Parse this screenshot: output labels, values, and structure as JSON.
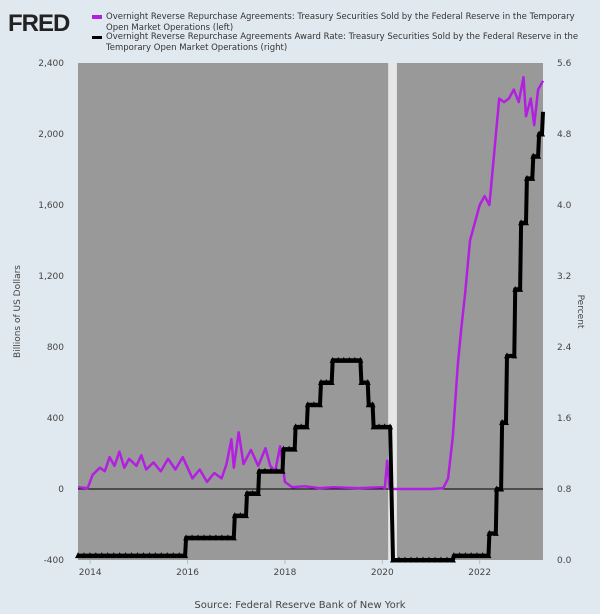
{
  "header": {
    "logo": "FRED"
  },
  "legend": [
    {
      "label": "Overnight Reverse Repurchase Agreements: Treasury Securities Sold by the Federal Reserve in the Temporary Open Market Operations (left)",
      "color": "#b31fe0"
    },
    {
      "label": "Overnight Reverse Repurchase Agreements Award Rate: Treasury Securities Sold by the Federal Reserve in the Temporary Open Market Operations (right)",
      "color": "#000000"
    }
  ],
  "source": "Source: Federal Reserve Bank of New York",
  "chart_data": {
    "type": "line",
    "xlim": [
      2013.75,
      2023.3
    ],
    "x_ticks": [
      "2014",
      "2016",
      "2018",
      "2020",
      "2022"
    ],
    "x_tick_values": [
      2014,
      2016,
      2018,
      2020,
      2022
    ],
    "ylabel_left": "Billions of US Dollars",
    "ylabel_right": "Percent",
    "ylim_left": [
      -400,
      2400
    ],
    "ylim_right": [
      0,
      5.6
    ],
    "y_ticks_left": [
      "2,400",
      "2,000",
      "1,600",
      "1,200",
      "800",
      "400",
      "0",
      "-400"
    ],
    "y_tick_values_left": [
      2400,
      2000,
      1600,
      1200,
      800,
      400,
      0,
      -400
    ],
    "y_ticks_right": [
      "5.6",
      "4.8",
      "4.0",
      "3.2",
      "2.4",
      "1.6",
      "0.8",
      "0.0"
    ],
    "y_tick_values_right": [
      5.6,
      4.8,
      4.0,
      3.2,
      2.4,
      1.6,
      0.8,
      0.0
    ],
    "recession": [
      2020.12,
      2020.3
    ],
    "series": [
      {
        "name": "Overnight RRP (left)",
        "axis": "left",
        "color": "#b31fe0",
        "points": [
          [
            2013.75,
            10
          ],
          [
            2013.95,
            5
          ],
          [
            2014.05,
            80
          ],
          [
            2014.2,
            120
          ],
          [
            2014.3,
            100
          ],
          [
            2014.4,
            180
          ],
          [
            2014.5,
            130
          ],
          [
            2014.6,
            210
          ],
          [
            2014.7,
            120
          ],
          [
            2014.8,
            170
          ],
          [
            2014.95,
            130
          ],
          [
            2015.05,
            190
          ],
          [
            2015.15,
            110
          ],
          [
            2015.3,
            150
          ],
          [
            2015.45,
            100
          ],
          [
            2015.6,
            170
          ],
          [
            2015.75,
            110
          ],
          [
            2015.9,
            180
          ],
          [
            2016.0,
            120
          ],
          [
            2016.1,
            60
          ],
          [
            2016.25,
            110
          ],
          [
            2016.4,
            40
          ],
          [
            2016.55,
            90
          ],
          [
            2016.7,
            60
          ],
          [
            2016.8,
            140
          ],
          [
            2016.9,
            280
          ],
          [
            2016.95,
            120
          ],
          [
            2017.05,
            320
          ],
          [
            2017.15,
            140
          ],
          [
            2017.3,
            220
          ],
          [
            2017.45,
            130
          ],
          [
            2017.6,
            230
          ],
          [
            2017.7,
            130
          ],
          [
            2017.8,
            100
          ],
          [
            2017.9,
            240
          ],
          [
            2018.0,
            40
          ],
          [
            2018.15,
            10
          ],
          [
            2018.4,
            15
          ],
          [
            2018.7,
            5
          ],
          [
            2019.0,
            10
          ],
          [
            2019.5,
            5
          ],
          [
            2020.0,
            10
          ],
          [
            2020.05,
            5
          ],
          [
            2020.1,
            160
          ],
          [
            2020.15,
            0
          ],
          [
            2020.5,
            0
          ],
          [
            2021.0,
            0
          ],
          [
            2021.25,
            5
          ],
          [
            2021.35,
            60
          ],
          [
            2021.45,
            300
          ],
          [
            2021.55,
            700
          ],
          [
            2021.62,
            900
          ],
          [
            2021.7,
            1100
          ],
          [
            2021.8,
            1400
          ],
          [
            2021.9,
            1500
          ],
          [
            2022.0,
            1600
          ],
          [
            2022.1,
            1650
          ],
          [
            2022.2,
            1600
          ],
          [
            2022.3,
            1900
          ],
          [
            2022.4,
            2200
          ],
          [
            2022.5,
            2180
          ],
          [
            2022.6,
            2200
          ],
          [
            2022.7,
            2250
          ],
          [
            2022.8,
            2180
          ],
          [
            2022.9,
            2320
          ],
          [
            2022.95,
            2100
          ],
          [
            2023.05,
            2200
          ],
          [
            2023.12,
            2050
          ],
          [
            2023.2,
            2250
          ],
          [
            2023.3,
            2300
          ]
        ]
      },
      {
        "name": "Award Rate (right)",
        "axis": "right",
        "color": "#000000",
        "points": [
          [
            2013.75,
            0.05
          ],
          [
            2015.95,
            0.05
          ],
          [
            2015.97,
            0.25
          ],
          [
            2016.95,
            0.25
          ],
          [
            2016.97,
            0.5
          ],
          [
            2017.2,
            0.5
          ],
          [
            2017.22,
            0.75
          ],
          [
            2017.45,
            0.75
          ],
          [
            2017.47,
            1.0
          ],
          [
            2017.95,
            1.0
          ],
          [
            2017.97,
            1.25
          ],
          [
            2018.2,
            1.25
          ],
          [
            2018.22,
            1.5
          ],
          [
            2018.45,
            1.5
          ],
          [
            2018.47,
            1.75
          ],
          [
            2018.72,
            1.75
          ],
          [
            2018.74,
            2.0
          ],
          [
            2018.96,
            2.0
          ],
          [
            2018.98,
            2.25
          ],
          [
            2019.55,
            2.25
          ],
          [
            2019.57,
            2.0
          ],
          [
            2019.7,
            2.0
          ],
          [
            2019.72,
            1.75
          ],
          [
            2019.8,
            1.75
          ],
          [
            2019.82,
            1.5
          ],
          [
            2020.16,
            1.5
          ],
          [
            2020.22,
            0.0
          ],
          [
            2021.45,
            0.0
          ],
          [
            2021.47,
            0.05
          ],
          [
            2022.18,
            0.05
          ],
          [
            2022.2,
            0.3
          ],
          [
            2022.33,
            0.3
          ],
          [
            2022.35,
            0.8
          ],
          [
            2022.44,
            0.8
          ],
          [
            2022.46,
            1.55
          ],
          [
            2022.54,
            1.55
          ],
          [
            2022.56,
            2.3
          ],
          [
            2022.71,
            2.3
          ],
          [
            2022.73,
            3.05
          ],
          [
            2022.83,
            3.05
          ],
          [
            2022.85,
            3.8
          ],
          [
            2022.95,
            3.8
          ],
          [
            2022.97,
            4.3
          ],
          [
            2023.08,
            4.3
          ],
          [
            2023.1,
            4.55
          ],
          [
            2023.2,
            4.55
          ],
          [
            2023.22,
            4.8
          ],
          [
            2023.28,
            4.8
          ],
          [
            2023.3,
            5.05
          ]
        ]
      }
    ]
  }
}
